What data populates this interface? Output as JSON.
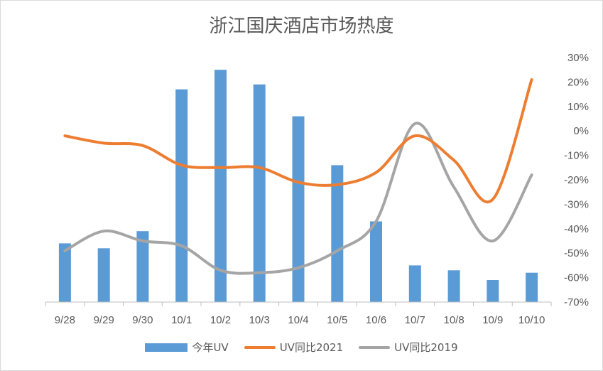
{
  "chart_data": {
    "type": "bar",
    "title": "浙江国庆酒店市场热度",
    "categories": [
      "9/28",
      "9/29",
      "9/30",
      "10/1",
      "10/2",
      "10/3",
      "10/4",
      "10/5",
      "10/6",
      "10/7",
      "10/8",
      "10/9",
      "10/10"
    ],
    "left_axis": {
      "ylim": [
        0,
        100
      ],
      "labels_shown": false
    },
    "right_axis": {
      "ylim": [
        -70,
        30
      ],
      "ticks": [
        "30%",
        "20%",
        "10%",
        "0%",
        "-10%",
        "-20%",
        "-30%",
        "-40%",
        "-50%",
        "-60%",
        "-70%"
      ]
    },
    "series": [
      {
        "name": "今年UV",
        "kind": "bar",
        "axis": "left",
        "color": "#5B9BD5",
        "values": [
          24,
          22,
          29,
          87,
          95,
          89,
          76,
          56,
          33,
          15,
          13,
          9,
          12
        ]
      },
      {
        "name": "UV同比2021",
        "kind": "line",
        "axis": "right",
        "color": "#ED7D31",
        "smooth": true,
        "values": [
          -2,
          -5,
          -6,
          -14,
          -15,
          -15,
          -21,
          -22,
          -17,
          -2,
          -12,
          -28,
          21
        ]
      },
      {
        "name": "UV同比2019",
        "kind": "line",
        "axis": "right",
        "color": "#A5A5A5",
        "smooth": true,
        "values": [
          -49,
          -41,
          -45,
          -47,
          -57,
          -58,
          -56,
          -49,
          -37,
          3,
          -23,
          -45,
          -18
        ]
      }
    ],
    "grid": false,
    "legend_position": "bottom"
  }
}
